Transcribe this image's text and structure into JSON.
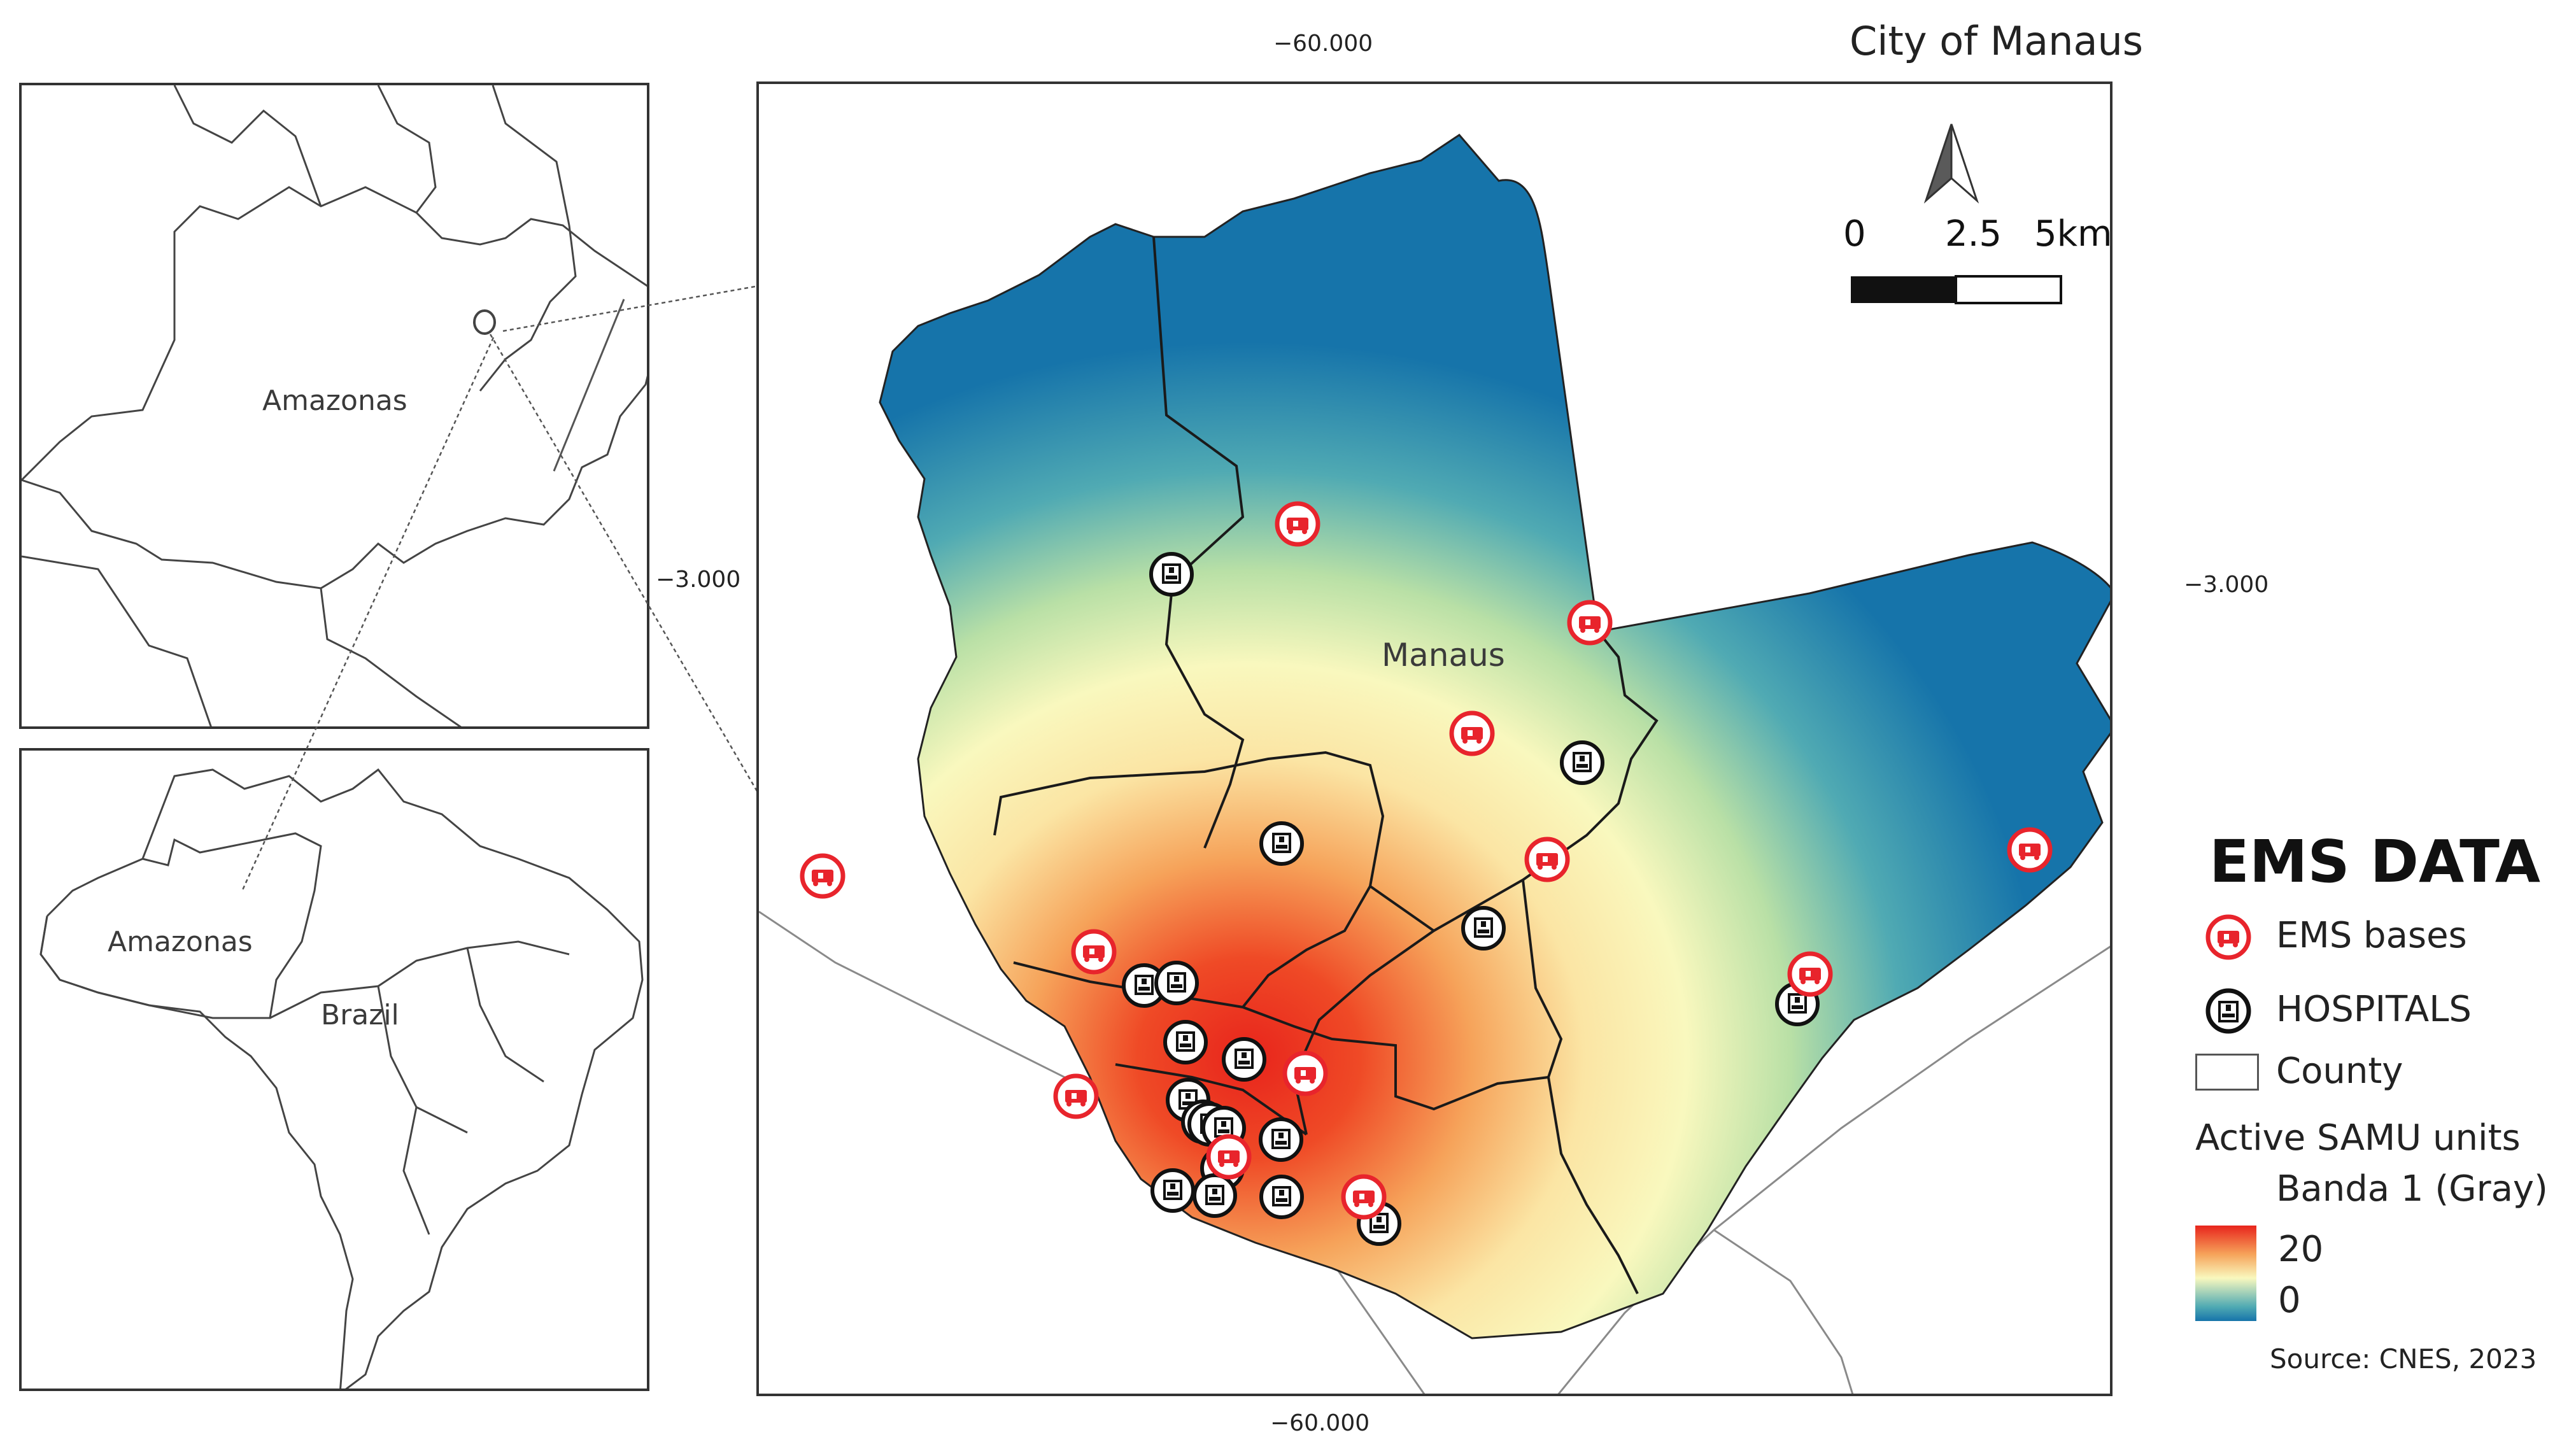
{
  "map": {
    "title": "City of Manaus",
    "city_label": "Manaus",
    "coords": {
      "top_lon": "−60.000",
      "bottom_lon": "−60.000",
      "left_lat": "−3.000",
      "right_lat": "−3.000"
    },
    "scale_bar": {
      "labels": [
        "0",
        "2.5",
        "5km"
      ]
    },
    "north_arrow": "north-arrow-icon",
    "colors": {
      "hot": "#e8241c",
      "mid": "#fbf6b6",
      "cold": "#1674aa",
      "ems": "#e8242c",
      "hospital": "#111111"
    }
  },
  "insets": {
    "top_label": "Amazonas",
    "bottom_state_label": "Amazonas",
    "bottom_country_label": "Brazil"
  },
  "legend": {
    "title": "EMS DATA",
    "ems_label": "EMS bases",
    "hospital_label": "HOSPITALS",
    "county_label": "County",
    "raster_title": "Active SAMU units",
    "band_label": "Banda 1 (Gray)",
    "max": "20",
    "min": "0",
    "source": "Source: CNES, 2023"
  }
}
